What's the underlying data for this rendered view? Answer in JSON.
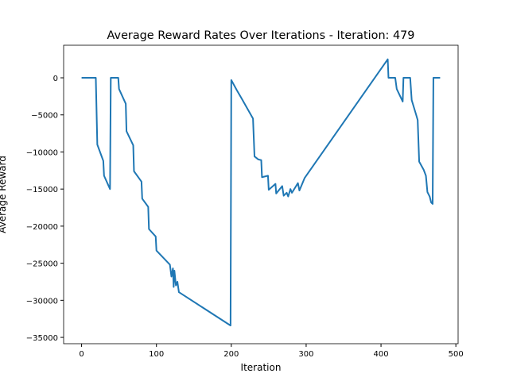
{
  "chart_data": {
    "type": "line",
    "title": "Average Reward Rates Over Iterations - Iteration: 479",
    "x_label": "Iteration",
    "y_label": "Average Reward",
    "x": [
      0,
      19,
      21,
      29,
      30,
      38,
      39,
      49,
      50,
      59,
      60,
      69,
      70,
      80,
      81,
      89,
      90,
      99,
      100,
      118,
      120,
      122,
      123,
      124,
      126,
      128,
      130,
      199,
      200,
      207,
      215,
      229,
      231,
      236,
      240,
      241,
      249,
      250,
      259,
      260,
      268,
      270,
      274,
      276,
      279,
      281,
      289,
      291,
      298,
      409,
      410,
      419,
      421,
      429,
      430,
      439,
      441,
      447,
      449,
      451,
      457,
      460,
      462,
      465,
      467,
      469,
      470,
      479
    ],
    "series": [
      {
        "name": "Average Reward",
        "color": "#1f77b4",
        "values": [
          0,
          0,
          -9000,
          -11200,
          -13200,
          -15000,
          0,
          0,
          -1500,
          -3500,
          -7200,
          -9100,
          -12600,
          -14000,
          -16300,
          -17400,
          -20400,
          -21400,
          -23300,
          -25200,
          -26800,
          -25700,
          -28200,
          -26000,
          -28000,
          -27500,
          -28900,
          -33400,
          -300,
          -1600,
          -3000,
          -5500,
          -10600,
          -11000,
          -11100,
          -13400,
          -13200,
          -15100,
          -14300,
          -15600,
          -14600,
          -15900,
          -15500,
          -16000,
          -15000,
          -15500,
          -14200,
          -15200,
          -13500,
          2500,
          0,
          0,
          -1500,
          -3200,
          0,
          0,
          -3000,
          -5000,
          -5700,
          -11300,
          -12400,
          -13200,
          -15400,
          -16000,
          -16800,
          -17000,
          0,
          0
        ]
      }
    ],
    "xlim": [
      -24,
      503
    ],
    "ylim": [
      -35850,
      4390
    ],
    "xticks": [
      0,
      100,
      200,
      300,
      400,
      500
    ],
    "yticks": [
      {
        "value": -35000,
        "label": "−35000"
      },
      {
        "value": -30000,
        "label": "−30000"
      },
      {
        "value": -25000,
        "label": "−25000"
      },
      {
        "value": -20000,
        "label": "−20000"
      },
      {
        "value": -15000,
        "label": "−15000"
      },
      {
        "value": -10000,
        "label": "−10000"
      },
      {
        "value": -5000,
        "label": "−5000"
      },
      0
    ]
  }
}
